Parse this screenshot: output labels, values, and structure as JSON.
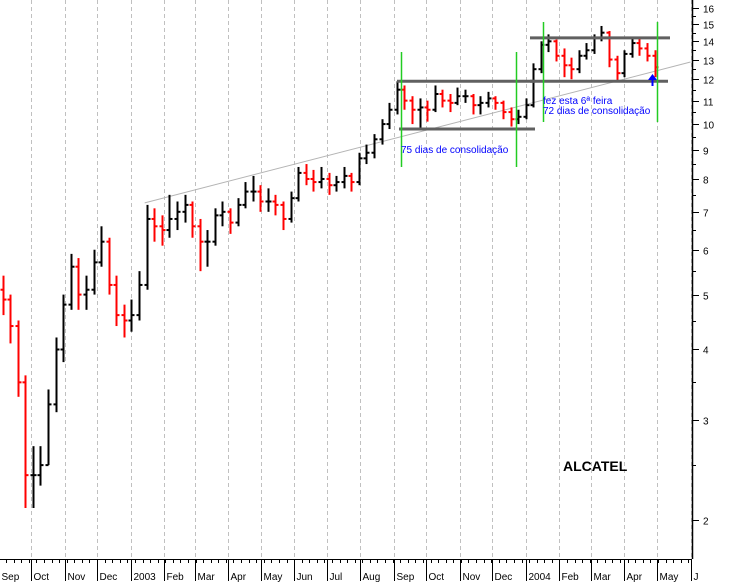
{
  "chart_data": {
    "type": "ohlc",
    "title": "ALCATEL",
    "xlabel": "",
    "ylabel": "",
    "y_scale": "log",
    "ylim": [
      1.8,
      16.6
    ],
    "xlim": [
      "2002-09-01",
      "2004-06-05"
    ],
    "grid": "vertical dashed at month starts",
    "y_ticks": [
      2,
      3,
      4,
      5,
      6,
      7,
      8,
      9,
      10,
      11,
      12,
      13,
      14,
      15,
      16
    ],
    "x_tick_labels": [
      {
        "date": "2002-09-01",
        "label": "Sep"
      },
      {
        "date": "2002-10-01",
        "label": "Oct"
      },
      {
        "date": "2002-11-01",
        "label": "Nov"
      },
      {
        "date": "2002-12-01",
        "label": "Dec"
      },
      {
        "date": "2003-01-01",
        "label": "2003"
      },
      {
        "date": "2003-02-01",
        "label": "Feb"
      },
      {
        "date": "2003-03-01",
        "label": "Mar"
      },
      {
        "date": "2003-04-01",
        "label": "Apr"
      },
      {
        "date": "2003-05-01",
        "label": "May"
      },
      {
        "date": "2003-06-01",
        "label": "Jun"
      },
      {
        "date": "2003-07-01",
        "label": "Jul"
      },
      {
        "date": "2003-08-01",
        "label": "Aug"
      },
      {
        "date": "2003-09-01",
        "label": "Sep"
      },
      {
        "date": "2003-10-01",
        "label": "Oct"
      },
      {
        "date": "2003-11-01",
        "label": "Nov"
      },
      {
        "date": "2003-12-01",
        "label": "Dec"
      },
      {
        "date": "2004-01-01",
        "label": "2004"
      },
      {
        "date": "2004-02-01",
        "label": "Feb"
      },
      {
        "date": "2004-03-01",
        "label": "Mar"
      },
      {
        "date": "2004-04-01",
        "label": "Apr"
      },
      {
        "date": "2004-05-01",
        "label": "May"
      },
      {
        "date": "2004-06-01",
        "label": "J"
      }
    ],
    "colors": {
      "up": "#000000",
      "down": "#ff0000",
      "trend": "#b4b4b4",
      "range": "#606060",
      "marker": "#22cc22",
      "arrow": "#0000ff",
      "grid": "#c0c0c0"
    },
    "ohlc_columns": [
      "date",
      "open",
      "high",
      "low",
      "close"
    ],
    "ohlc": [
      [
        "2002-09-02",
        5.1,
        5.4,
        4.6,
        4.9
      ],
      [
        "2002-09-09",
        4.9,
        5.0,
        4.1,
        4.4
      ],
      [
        "2002-09-16",
        4.4,
        4.5,
        3.3,
        3.5
      ],
      [
        "2002-09-23",
        3.5,
        3.6,
        2.1,
        2.4
      ],
      [
        "2002-09-30",
        2.4,
        2.7,
        2.1,
        2.4
      ],
      [
        "2002-10-07",
        2.4,
        2.7,
        2.3,
        2.5
      ],
      [
        "2002-10-14",
        2.5,
        3.4,
        2.5,
        3.2
      ],
      [
        "2002-10-21",
        3.2,
        4.2,
        3.1,
        4.0
      ],
      [
        "2002-10-28",
        4.0,
        5.0,
        3.8,
        4.8
      ],
      [
        "2002-11-04",
        4.8,
        5.9,
        4.7,
        5.6
      ],
      [
        "2002-11-11",
        5.6,
        5.8,
        4.7,
        5.0
      ],
      [
        "2002-11-18",
        5.0,
        5.4,
        4.7,
        5.1
      ],
      [
        "2002-11-25",
        5.1,
        6.0,
        5.0,
        5.7
      ],
      [
        "2002-12-02",
        5.7,
        6.6,
        5.6,
        6.2
      ],
      [
        "2002-12-09",
        6.2,
        6.3,
        5.0,
        5.2
      ],
      [
        "2002-12-16",
        5.2,
        5.4,
        4.4,
        4.6
      ],
      [
        "2002-12-23",
        4.6,
        4.8,
        4.2,
        4.5
      ],
      [
        "2002-12-30",
        4.5,
        4.9,
        4.3,
        4.6
      ],
      [
        "2003-01-06",
        4.6,
        5.5,
        4.5,
        5.2
      ],
      [
        "2003-01-13",
        5.2,
        7.2,
        5.1,
        6.8
      ],
      [
        "2003-01-20",
        6.8,
        7.1,
        6.2,
        6.6
      ],
      [
        "2003-01-27",
        6.6,
        6.9,
        6.1,
        6.5
      ],
      [
        "2003-02-03",
        6.5,
        7.5,
        6.3,
        6.8
      ],
      [
        "2003-02-10",
        6.8,
        7.3,
        6.5,
        7.0
      ],
      [
        "2003-02-17",
        7.0,
        7.5,
        6.7,
        7.2
      ],
      [
        "2003-02-24",
        7.2,
        7.3,
        6.3,
        6.6
      ],
      [
        "2003-03-03",
        6.6,
        6.8,
        5.5,
        6.2
      ],
      [
        "2003-03-10",
        6.2,
        6.5,
        5.6,
        6.2
      ],
      [
        "2003-03-17",
        6.2,
        7.1,
        6.1,
        6.9
      ],
      [
        "2003-03-24",
        6.9,
        7.3,
        6.6,
        7.0
      ],
      [
        "2003-03-31",
        7.0,
        7.1,
        6.4,
        6.7
      ],
      [
        "2003-04-07",
        6.7,
        7.4,
        6.6,
        7.2
      ],
      [
        "2003-04-14",
        7.2,
        7.9,
        7.1,
        7.6
      ],
      [
        "2003-04-21",
        7.6,
        8.1,
        7.3,
        7.6
      ],
      [
        "2003-04-28",
        7.6,
        7.8,
        7.0,
        7.3
      ],
      [
        "2003-05-05",
        7.3,
        7.7,
        7.0,
        7.3
      ],
      [
        "2003-05-12",
        7.3,
        7.5,
        6.9,
        7.2
      ],
      [
        "2003-05-19",
        7.2,
        7.3,
        6.5,
        6.8
      ],
      [
        "2003-05-26",
        6.8,
        7.6,
        6.7,
        7.4
      ],
      [
        "2003-06-02",
        7.4,
        8.4,
        7.3,
        8.2
      ],
      [
        "2003-06-09",
        8.2,
        8.5,
        7.8,
        8.0
      ],
      [
        "2003-06-16",
        8.0,
        8.3,
        7.6,
        7.9
      ],
      [
        "2003-06-23",
        7.9,
        8.4,
        7.7,
        8.0
      ],
      [
        "2003-06-30",
        8.0,
        8.2,
        7.5,
        7.8
      ],
      [
        "2003-07-07",
        7.8,
        8.1,
        7.6,
        7.9
      ],
      [
        "2003-07-14",
        7.9,
        8.4,
        7.7,
        8.1
      ],
      [
        "2003-07-21",
        8.1,
        8.2,
        7.6,
        7.9
      ],
      [
        "2003-07-28",
        7.9,
        8.9,
        7.8,
        8.7
      ],
      [
        "2003-08-04",
        8.7,
        9.2,
        8.5,
        8.9
      ],
      [
        "2003-08-11",
        8.9,
        9.6,
        8.7,
        9.4
      ],
      [
        "2003-08-18",
        9.4,
        10.2,
        9.2,
        10.0
      ],
      [
        "2003-08-25",
        10.0,
        10.9,
        9.8,
        10.6
      ],
      [
        "2003-09-01",
        10.6,
        11.9,
        10.4,
        11.5
      ],
      [
        "2003-09-08",
        11.5,
        11.7,
        10.6,
        11.0
      ],
      [
        "2003-09-15",
        11.0,
        11.2,
        10.0,
        10.6
      ],
      [
        "2003-09-22",
        10.6,
        11.1,
        9.8,
        10.7
      ],
      [
        "2003-09-29",
        10.7,
        11.0,
        10.1,
        10.6
      ],
      [
        "2003-10-06",
        10.6,
        11.7,
        10.5,
        11.3
      ],
      [
        "2003-10-13",
        11.3,
        11.5,
        10.7,
        11.0
      ],
      [
        "2003-10-20",
        11.0,
        11.3,
        10.5,
        10.9
      ],
      [
        "2003-10-27",
        10.9,
        11.6,
        10.8,
        11.2
      ],
      [
        "2003-11-03",
        11.2,
        11.5,
        10.9,
        11.2
      ],
      [
        "2003-11-10",
        11.2,
        11.3,
        10.4,
        10.8
      ],
      [
        "2003-11-17",
        10.8,
        11.2,
        10.4,
        10.9
      ],
      [
        "2003-11-24",
        10.9,
        11.4,
        10.7,
        11.1
      ],
      [
        "2003-12-01",
        11.1,
        11.2,
        10.6,
        10.9
      ],
      [
        "2003-12-08",
        10.9,
        11.0,
        10.2,
        10.5
      ],
      [
        "2003-12-15",
        10.5,
        10.7,
        9.9,
        10.2
      ],
      [
        "2003-12-22",
        10.2,
        10.6,
        10.0,
        10.3
      ],
      [
        "2003-12-29",
        10.3,
        11.1,
        10.2,
        10.8
      ],
      [
        "2004-01-05",
        10.8,
        12.8,
        10.7,
        12.5
      ],
      [
        "2004-01-12",
        12.5,
        14.0,
        12.3,
        13.8
      ],
      [
        "2004-01-19",
        13.8,
        14.4,
        13.4,
        14.0
      ],
      [
        "2004-01-26",
        14.0,
        14.1,
        12.9,
        13.2
      ],
      [
        "2004-02-02",
        13.2,
        13.6,
        12.1,
        12.7
      ],
      [
        "2004-02-09",
        12.7,
        13.1,
        12.0,
        12.5
      ],
      [
        "2004-02-16",
        12.5,
        13.5,
        12.3,
        13.2
      ],
      [
        "2004-02-23",
        13.2,
        13.9,
        13.0,
        13.5
      ],
      [
        "2004-03-01",
        13.5,
        14.4,
        13.3,
        14.2
      ],
      [
        "2004-03-08",
        14.2,
        14.9,
        14.0,
        14.5
      ],
      [
        "2004-03-15",
        14.5,
        14.6,
        12.6,
        13.0
      ],
      [
        "2004-03-22",
        13.0,
        13.2,
        11.9,
        12.3
      ],
      [
        "2004-03-29",
        12.3,
        13.5,
        12.1,
        13.3
      ],
      [
        "2004-04-05",
        13.3,
        14.2,
        13.1,
        13.9
      ],
      [
        "2004-04-12",
        13.9,
        14.2,
        13.2,
        13.6
      ],
      [
        "2004-04-19",
        13.6,
        13.9,
        12.9,
        13.2
      ],
      [
        "2004-04-26",
        13.2,
        13.5,
        12.1,
        12.6
      ]
    ],
    "trendline": {
      "start": [
        "2003-01-14",
        7.26
      ],
      "end": [
        "2004-06-01",
        12.87
      ]
    },
    "consolidation_ranges": [
      {
        "from": "2003-09-04",
        "to": "2003-12-31",
        "high": 11.9,
        "low": 9.8,
        "label": "75 dias de consolidação"
      },
      {
        "from": "2004-01-14",
        "to": "2004-04-30",
        "high": 14.2,
        "low": 11.9,
        "label": "72 dias de consolidação"
      }
    ],
    "annotations": [
      "fez esta 6ª feira"
    ]
  }
}
